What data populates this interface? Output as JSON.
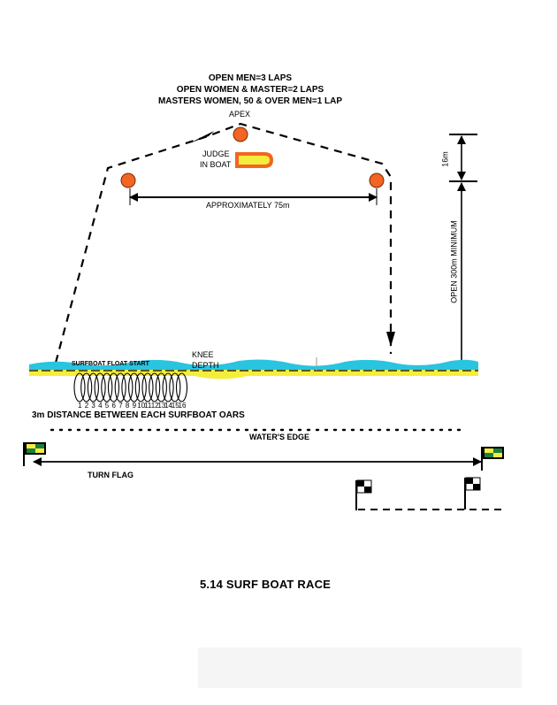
{
  "laps": {
    "line1": "OPEN MEN=3 LAPS",
    "line2": "OPEN WOMEN & MASTER=2 LAPS",
    "line3": "MASTERS WOMEN, 50 & OVER MEN=1 LAP"
  },
  "labels": {
    "apex": "APEX",
    "judge_line1": "JUDGE",
    "judge_line2": "IN BOAT",
    "distance_between_buoys": "APPROXIMATELY  75m",
    "apex_offset": "16m",
    "course_length": "OPEN 300m MINIMUM",
    "knee_line1": "KNEE",
    "knee_line2": "DEPTH",
    "float_start": "SURFBOAT FLOAT START",
    "oars_spacing": "3m DISTANCE BETWEEN EACH SURFBOAT OARS",
    "waters_edge": "WATER'S EDGE",
    "turn_flag": "TURN FLAG"
  },
  "boat_numbers": [
    "1",
    "2",
    "3",
    "4",
    "5",
    "6",
    "7",
    "8",
    "9",
    "10",
    "11",
    "12",
    "13",
    "14",
    "15",
    "16"
  ],
  "caption": "5.14 SURF BOAT RACE",
  "colors": {
    "buoy": "#f26522",
    "water": "#29c4e0",
    "sand": "#f3ee3e",
    "flag_green": "#1a7f3c",
    "flag_yellow": "#f3ee3e",
    "judge_boat_fill": "#f3ee3e",
    "judge_boat_border": "#f26522"
  }
}
